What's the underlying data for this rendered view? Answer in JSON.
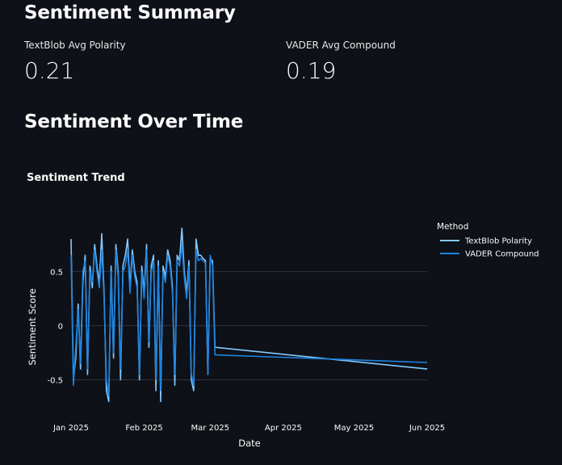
{
  "summary": {
    "title": "Sentiment Summary",
    "metrics": [
      {
        "label": "TextBlob Avg Polarity",
        "value": "0.21"
      },
      {
        "label": "VADER Avg Compound",
        "value": "0.19"
      }
    ]
  },
  "over_time": {
    "title": "Sentiment Over Time"
  },
  "chart_data": {
    "type": "line",
    "title": "Sentiment Trend",
    "xlabel": "Date",
    "ylabel": "Sentiment Score",
    "x_ticks": [
      "Jan 2025",
      "Feb 2025",
      "Mar 2025",
      "Apr 2025",
      "May 2025",
      "Jun 2025"
    ],
    "y_ticks": [
      0.5,
      0,
      -0.5
    ],
    "ylim": [
      -0.72,
      0.92
    ],
    "grid": true,
    "legend_title": "Method",
    "legend_position": "top-right",
    "series": [
      {
        "name": "TextBlob Polarity",
        "color": "#83c9ff",
        "values": [
          [
            "2025-01-01",
            0.8
          ],
          [
            "2025-01-02",
            -0.5
          ],
          [
            "2025-01-03",
            -0.3
          ],
          [
            "2025-01-04",
            0.2
          ],
          [
            "2025-01-05",
            -0.4
          ],
          [
            "2025-01-06",
            0.4
          ],
          [
            "2025-01-07",
            0.65
          ],
          [
            "2025-01-08",
            -0.45
          ],
          [
            "2025-01-09",
            0.55
          ],
          [
            "2025-01-10",
            0.35
          ],
          [
            "2025-01-11",
            0.75
          ],
          [
            "2025-01-12",
            0.55
          ],
          [
            "2025-01-13",
            0.4
          ],
          [
            "2025-01-14",
            0.85
          ],
          [
            "2025-01-15",
            0.3
          ],
          [
            "2025-01-16",
            -0.6
          ],
          [
            "2025-01-17",
            -0.7
          ],
          [
            "2025-01-18",
            0.55
          ],
          [
            "2025-01-19",
            -0.3
          ],
          [
            "2025-01-20",
            0.75
          ],
          [
            "2025-01-21",
            0.5
          ],
          [
            "2025-01-22",
            -0.5
          ],
          [
            "2025-01-23",
            0.55
          ],
          [
            "2025-01-24",
            0.65
          ],
          [
            "2025-01-25",
            0.8
          ],
          [
            "2025-01-26",
            0.35
          ],
          [
            "2025-01-27",
            0.7
          ],
          [
            "2025-01-28",
            0.5
          ],
          [
            "2025-01-29",
            0.4
          ],
          [
            "2025-01-30",
            -0.5
          ],
          [
            "2025-01-31",
            0.55
          ],
          [
            "2025-02-01",
            0.3
          ],
          [
            "2025-02-02",
            0.75
          ],
          [
            "2025-02-03",
            -0.2
          ],
          [
            "2025-02-04",
            0.55
          ],
          [
            "2025-02-05",
            0.65
          ],
          [
            "2025-02-06",
            -0.6
          ],
          [
            "2025-02-07",
            0.6
          ],
          [
            "2025-02-08",
            -0.7
          ],
          [
            "2025-02-09",
            0.55
          ],
          [
            "2025-02-10",
            0.45
          ],
          [
            "2025-02-11",
            0.7
          ],
          [
            "2025-02-12",
            0.6
          ],
          [
            "2025-02-13",
            0.35
          ],
          [
            "2025-02-14",
            -0.55
          ],
          [
            "2025-02-15",
            0.65
          ],
          [
            "2025-02-16",
            0.6
          ],
          [
            "2025-02-17",
            0.9
          ],
          [
            "2025-02-18",
            0.5
          ],
          [
            "2025-02-19",
            0.3
          ],
          [
            "2025-02-20",
            0.6
          ],
          [
            "2025-02-21",
            -0.5
          ],
          [
            "2025-02-22",
            -0.6
          ],
          [
            "2025-02-23",
            0.8
          ],
          [
            "2025-02-24",
            0.65
          ],
          [
            "2025-02-25",
            0.65
          ],
          [
            "2025-02-26",
            0.62
          ],
          [
            "2025-02-27",
            0.6
          ],
          [
            "2025-02-28",
            -0.45
          ],
          [
            "2025-03-01",
            0.62
          ],
          [
            "2025-03-02",
            0.6
          ],
          [
            "2025-03-03",
            -0.2
          ],
          [
            "2025-06-01",
            -0.4
          ]
        ]
      },
      {
        "name": "VADER Compound",
        "color": "#1c83e1",
        "values": [
          [
            "2025-01-01",
            0.65
          ],
          [
            "2025-01-02",
            -0.55
          ],
          [
            "2025-01-03",
            -0.2
          ],
          [
            "2025-01-04",
            0.15
          ],
          [
            "2025-01-05",
            -0.35
          ],
          [
            "2025-01-06",
            0.5
          ],
          [
            "2025-01-07",
            0.6
          ],
          [
            "2025-01-08",
            -0.4
          ],
          [
            "2025-01-09",
            0.5
          ],
          [
            "2025-01-10",
            0.4
          ],
          [
            "2025-01-11",
            0.7
          ],
          [
            "2025-01-12",
            0.5
          ],
          [
            "2025-01-13",
            0.35
          ],
          [
            "2025-01-14",
            0.7
          ],
          [
            "2025-01-15",
            0.25
          ],
          [
            "2025-01-16",
            -0.5
          ],
          [
            "2025-01-17",
            -0.65
          ],
          [
            "2025-01-18",
            0.5
          ],
          [
            "2025-01-19",
            -0.25
          ],
          [
            "2025-01-20",
            0.7
          ],
          [
            "2025-01-21",
            0.45
          ],
          [
            "2025-01-22",
            -0.4
          ],
          [
            "2025-01-23",
            0.5
          ],
          [
            "2025-01-24",
            0.55
          ],
          [
            "2025-01-25",
            0.7
          ],
          [
            "2025-01-26",
            0.3
          ],
          [
            "2025-01-27",
            0.65
          ],
          [
            "2025-01-28",
            0.45
          ],
          [
            "2025-01-29",
            0.35
          ],
          [
            "2025-01-30",
            -0.45
          ],
          [
            "2025-01-31",
            0.5
          ],
          [
            "2025-02-01",
            0.25
          ],
          [
            "2025-02-02",
            0.7
          ],
          [
            "2025-02-03",
            -0.15
          ],
          [
            "2025-02-04",
            0.5
          ],
          [
            "2025-02-05",
            0.6
          ],
          [
            "2025-02-06",
            -0.5
          ],
          [
            "2025-02-07",
            0.55
          ],
          [
            "2025-02-08",
            -0.6
          ],
          [
            "2025-02-09",
            0.5
          ],
          [
            "2025-02-10",
            0.4
          ],
          [
            "2025-02-11",
            0.65
          ],
          [
            "2025-02-12",
            0.55
          ],
          [
            "2025-02-13",
            0.3
          ],
          [
            "2025-02-14",
            -0.45
          ],
          [
            "2025-02-15",
            0.6
          ],
          [
            "2025-02-16",
            0.55
          ],
          [
            "2025-02-17",
            0.75
          ],
          [
            "2025-02-18",
            0.45
          ],
          [
            "2025-02-19",
            0.25
          ],
          [
            "2025-02-20",
            0.55
          ],
          [
            "2025-02-21",
            -0.45
          ],
          [
            "2025-02-22",
            -0.55
          ],
          [
            "2025-02-23",
            0.7
          ],
          [
            "2025-02-24",
            0.6
          ],
          [
            "2025-02-25",
            0.62
          ],
          [
            "2025-02-26",
            0.6
          ],
          [
            "2025-02-27",
            0.58
          ],
          [
            "2025-02-28",
            -0.45
          ],
          [
            "2025-03-01",
            0.65
          ],
          [
            "2025-03-02",
            0.55
          ],
          [
            "2025-03-03",
            -0.27
          ],
          [
            "2025-06-01",
            -0.34
          ]
        ]
      }
    ]
  }
}
